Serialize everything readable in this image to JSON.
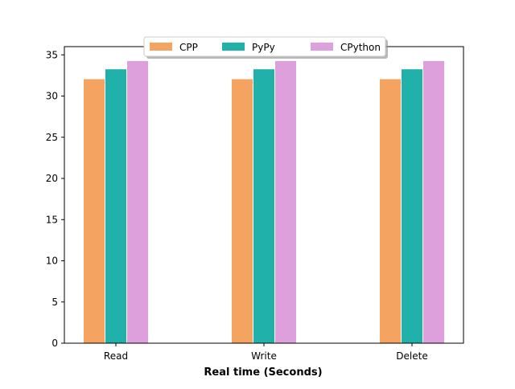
{
  "chart_data": {
    "type": "bar",
    "categories": [
      "Read",
      "Write",
      "Delete"
    ],
    "series": [
      {
        "name": "CPP",
        "color": "#F4A460",
        "values": [
          32.1,
          32.1,
          32.1
        ]
      },
      {
        "name": "PyPy",
        "color": "#20B2AA",
        "values": [
          33.3,
          33.3,
          33.3
        ]
      },
      {
        "name": "CPython",
        "color": "#DDA0DD",
        "values": [
          34.3,
          34.3,
          34.3
        ]
      }
    ],
    "title": "",
    "xlabel": "Real time (Seconds)",
    "ylabel": "",
    "ylim": [
      0,
      36
    ],
    "yticks": [
      0,
      5,
      10,
      15,
      20,
      25,
      30,
      35
    ],
    "grid": false,
    "legend_position": "top-center"
  }
}
